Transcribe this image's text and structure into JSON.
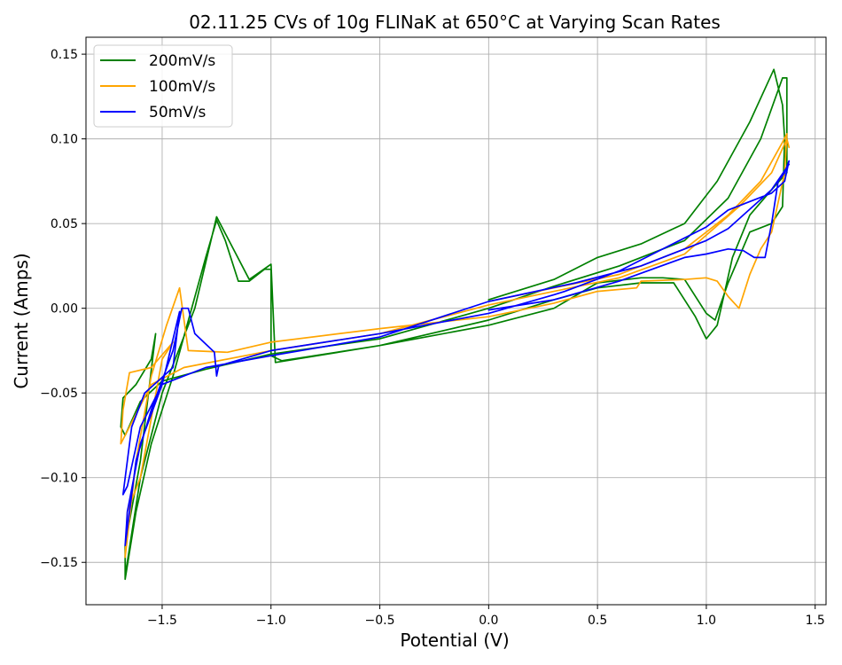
{
  "chart_data": {
    "type": "line",
    "title": "02.11.25 CVs of 10g FLINaK at 650°C at Varying Scan Rates",
    "xlabel": "Potential (V)",
    "ylabel": "Current (Amps)",
    "xlim": [
      -1.85,
      1.55
    ],
    "ylim": [
      -0.175,
      0.16
    ],
    "xticks": [
      -1.5,
      -1.0,
      -0.5,
      0.0,
      0.5,
      1.0,
      1.5
    ],
    "xtick_labels": [
      "−1.5",
      "−1.0",
      "−0.5",
      "0.0",
      "0.5",
      "1.0",
      "1.5"
    ],
    "yticks": [
      -0.15,
      -0.1,
      -0.05,
      0.0,
      0.05,
      0.1,
      0.15
    ],
    "ytick_labels": [
      "−0.15",
      "−0.10",
      "−0.05",
      "0.00",
      "0.05",
      "0.10",
      "0.15"
    ],
    "grid": true,
    "legend_position": "top-left",
    "series": [
      {
        "name": "200mV/s",
        "color": "#008000",
        "points": [
          [
            0.0,
            0.005
          ],
          [
            0.3,
            0.017
          ],
          [
            0.5,
            0.03
          ],
          [
            0.7,
            0.038
          ],
          [
            0.9,
            0.05
          ],
          [
            1.05,
            0.075
          ],
          [
            1.2,
            0.11
          ],
          [
            1.31,
            0.141
          ],
          [
            1.35,
            0.12
          ],
          [
            1.36,
            0.1
          ],
          [
            1.35,
            0.06
          ],
          [
            1.3,
            0.05
          ],
          [
            1.2,
            0.045
          ],
          [
            1.1,
            0.015
          ],
          [
            1.04,
            -0.007
          ],
          [
            1.0,
            -0.003
          ],
          [
            0.9,
            0.017
          ],
          [
            0.8,
            0.018
          ],
          [
            0.7,
            0.018
          ],
          [
            0.5,
            0.015
          ],
          [
            0.3,
            0.0
          ],
          [
            0.0,
            -0.01
          ],
          [
            -0.5,
            -0.022
          ],
          [
            -0.95,
            -0.031
          ],
          [
            -1.0,
            -0.028
          ],
          [
            -1.0,
            0.023
          ],
          [
            -1.03,
            0.023
          ],
          [
            -1.1,
            0.016
          ],
          [
            -1.15,
            0.016
          ],
          [
            -1.21,
            0.04
          ],
          [
            -1.25,
            0.052
          ],
          [
            -1.3,
            0.03
          ],
          [
            -1.45,
            -0.04
          ],
          [
            -1.55,
            -0.08
          ],
          [
            -1.62,
            -0.12
          ],
          [
            -1.67,
            -0.16
          ],
          [
            -1.67,
            -0.14
          ],
          [
            -1.6,
            -0.09
          ],
          [
            -1.53,
            -0.015
          ],
          [
            -1.55,
            -0.03
          ],
          [
            -1.62,
            -0.045
          ],
          [
            -1.68,
            -0.053
          ],
          [
            -1.69,
            -0.07
          ],
          [
            -1.67,
            -0.075
          ],
          [
            -1.6,
            -0.055
          ],
          [
            -1.5,
            -0.043
          ],
          [
            -1.3,
            -0.036
          ],
          [
            -1.0,
            -0.027
          ],
          [
            -0.5,
            -0.018
          ],
          [
            0.0,
            0.0
          ],
          [
            0.3,
            0.013
          ],
          [
            0.6,
            0.025
          ],
          [
            0.9,
            0.04
          ],
          [
            1.1,
            0.065
          ],
          [
            1.25,
            0.1
          ],
          [
            1.35,
            0.136
          ],
          [
            1.37,
            0.136
          ],
          [
            1.37,
            0.08
          ],
          [
            1.3,
            0.07
          ],
          [
            1.2,
            0.055
          ],
          [
            1.12,
            0.03
          ],
          [
            1.05,
            -0.01
          ],
          [
            1.0,
            -0.018
          ],
          [
            0.95,
            -0.005
          ],
          [
            0.85,
            0.015
          ],
          [
            0.7,
            0.015
          ],
          [
            0.5,
            0.012
          ],
          [
            0.3,
            0.005
          ],
          [
            0.0,
            -0.007
          ],
          [
            -0.5,
            -0.022
          ],
          [
            -0.98,
            -0.032
          ],
          [
            -1.0,
            0.026
          ],
          [
            -1.1,
            0.017
          ],
          [
            -1.25,
            0.054
          ],
          [
            -1.35,
            0.0
          ],
          [
            -1.5,
            -0.05
          ],
          [
            -1.6,
            -0.1
          ],
          [
            -1.67,
            -0.158
          ]
        ]
      },
      {
        "name": "100mV/s",
        "color": "#ffa500",
        "points": [
          [
            0.0,
            0.004
          ],
          [
            0.3,
            0.012
          ],
          [
            0.6,
            0.02
          ],
          [
            0.9,
            0.035
          ],
          [
            1.1,
            0.055
          ],
          [
            1.25,
            0.075
          ],
          [
            1.35,
            0.098
          ],
          [
            1.37,
            0.103
          ],
          [
            1.36,
            0.08
          ],
          [
            1.3,
            0.045
          ],
          [
            1.25,
            0.035
          ],
          [
            1.2,
            0.02
          ],
          [
            1.15,
            0.0
          ],
          [
            1.1,
            0.007
          ],
          [
            1.05,
            0.016
          ],
          [
            1.0,
            0.018
          ],
          [
            0.9,
            0.017
          ],
          [
            0.7,
            0.016
          ],
          [
            0.68,
            0.012
          ],
          [
            0.5,
            0.01
          ],
          [
            0.3,
            0.003
          ],
          [
            0.0,
            -0.005
          ],
          [
            -0.5,
            -0.012
          ],
          [
            -1.0,
            -0.02
          ],
          [
            -1.2,
            -0.026
          ],
          [
            -1.38,
            -0.025
          ],
          [
            -1.42,
            0.012
          ],
          [
            -1.48,
            -0.01
          ],
          [
            -1.55,
            -0.04
          ],
          [
            -1.62,
            -0.09
          ],
          [
            -1.67,
            -0.147
          ],
          [
            -1.66,
            -0.12
          ],
          [
            -1.6,
            -0.1
          ],
          [
            -1.5,
            -0.03
          ],
          [
            -1.45,
            -0.02
          ],
          [
            -1.55,
            -0.035
          ],
          [
            -1.65,
            -0.038
          ],
          [
            -1.68,
            -0.06
          ],
          [
            -1.69,
            -0.08
          ],
          [
            -1.65,
            -0.07
          ],
          [
            -1.55,
            -0.045
          ],
          [
            -1.4,
            -0.035
          ],
          [
            -1.0,
            -0.025
          ],
          [
            -0.5,
            -0.015
          ],
          [
            0.0,
            0.002
          ],
          [
            0.3,
            0.01
          ],
          [
            0.6,
            0.018
          ],
          [
            0.9,
            0.032
          ],
          [
            1.15,
            0.06
          ],
          [
            1.3,
            0.08
          ],
          [
            1.37,
            0.1
          ],
          [
            1.38,
            0.095
          ]
        ]
      },
      {
        "name": "50mV/s",
        "color": "#0000ff",
        "points": [
          [
            0.0,
            -0.001
          ],
          [
            0.3,
            0.005
          ],
          [
            0.6,
            0.016
          ],
          [
            0.9,
            0.03
          ],
          [
            1.0,
            0.032
          ],
          [
            1.1,
            0.035
          ],
          [
            1.17,
            0.034
          ],
          [
            1.22,
            0.03
          ],
          [
            1.27,
            0.03
          ],
          [
            1.3,
            0.05
          ],
          [
            1.33,
            0.075
          ],
          [
            1.36,
            0.08
          ],
          [
            1.38,
            0.087
          ],
          [
            1.36,
            0.075
          ],
          [
            1.3,
            0.068
          ],
          [
            1.2,
            0.063
          ],
          [
            1.1,
            0.058
          ],
          [
            1.0,
            0.048
          ],
          [
            0.8,
            0.035
          ],
          [
            0.6,
            0.022
          ],
          [
            0.35,
            0.01
          ],
          [
            0.3,
            0.008
          ],
          [
            0.0,
            -0.003
          ],
          [
            -0.5,
            -0.015
          ],
          [
            -1.0,
            -0.025
          ],
          [
            -1.24,
            -0.034
          ],
          [
            -1.25,
            -0.04
          ],
          [
            -1.26,
            -0.026
          ],
          [
            -1.35,
            -0.015
          ],
          [
            -1.38,
            0.0
          ],
          [
            -1.41,
            0.0
          ],
          [
            -1.45,
            -0.025
          ],
          [
            -1.55,
            -0.06
          ],
          [
            -1.62,
            -0.09
          ],
          [
            -1.67,
            -0.14
          ],
          [
            -1.66,
            -0.12
          ],
          [
            -1.6,
            -0.08
          ],
          [
            -1.5,
            -0.045
          ],
          [
            -1.42,
            -0.002
          ],
          [
            -1.45,
            -0.035
          ],
          [
            -1.58,
            -0.05
          ],
          [
            -1.64,
            -0.07
          ],
          [
            -1.68,
            -0.11
          ],
          [
            -1.66,
            -0.105
          ],
          [
            -1.6,
            -0.07
          ],
          [
            -1.5,
            -0.045
          ],
          [
            -1.3,
            -0.035
          ],
          [
            -1.0,
            -0.028
          ],
          [
            -0.5,
            -0.017
          ],
          [
            0.0,
            0.004
          ],
          [
            0.4,
            0.015
          ],
          [
            0.7,
            0.025
          ],
          [
            1.0,
            0.04
          ],
          [
            1.1,
            0.047
          ],
          [
            1.3,
            0.07
          ],
          [
            1.38,
            0.085
          ]
        ]
      }
    ]
  }
}
